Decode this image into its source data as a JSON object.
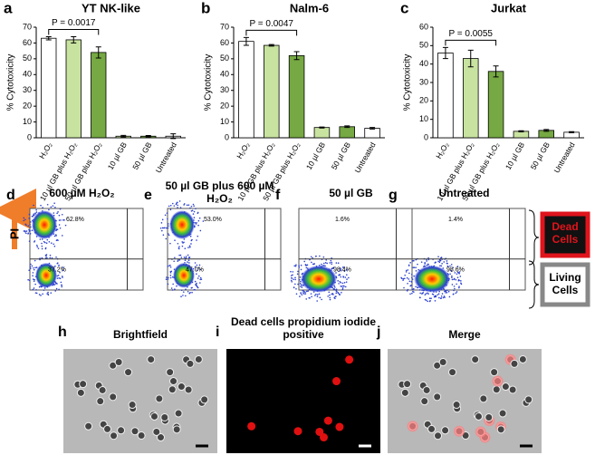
{
  "chart_data": [
    {
      "type": "bar",
      "panel_label": "a",
      "title": "YT NK-like",
      "y_label": "% Cytotoxicity",
      "annotation": "P = 0.0017",
      "categories": [
        "H₂O₂",
        "10 µl GB plus H₂O₂",
        "50 µl GB plus H₂O₂",
        "10 µl GB",
        "50 µl GB",
        "Untreated"
      ],
      "values": [
        63,
        62,
        54,
        1,
        1,
        1
      ],
      "errors": [
        1,
        2,
        3.5,
        0.5,
        0.4,
        1.5
      ],
      "colors": [
        "#ffffff",
        "#c8e3a0",
        "#76a843",
        "#c8e3a0",
        "#76a843",
        "#ffffff"
      ],
      "ylim": [
        0,
        70
      ],
      "yticks": [
        0,
        10,
        20,
        30,
        40,
        50,
        60,
        70
      ]
    },
    {
      "type": "bar",
      "panel_label": "b",
      "title": "Nalm-6",
      "y_label": "% Cytotoxicity",
      "annotation": "P = 0.0047",
      "categories": [
        "H₂O₂",
        "10 µl GB plus H₂O₂",
        "50 µl GB plus H₂O₂",
        "10 µl GB",
        "50 µl GB",
        "Untreated"
      ],
      "values": [
        61,
        58.5,
        52,
        6.5,
        7,
        6
      ],
      "errors": [
        2.5,
        0.5,
        2.5,
        0.3,
        0.5,
        0.5
      ],
      "colors": [
        "#ffffff",
        "#c8e3a0",
        "#76a843",
        "#c8e3a0",
        "#76a843",
        "#ffffff"
      ],
      "ylim": [
        0,
        70
      ],
      "yticks": [
        0,
        10,
        20,
        30,
        40,
        50,
        60,
        70
      ]
    },
    {
      "type": "bar",
      "panel_label": "c",
      "title": "Jurkat",
      "y_label": "% Cytotoxicity",
      "annotation": "P = 0.0055",
      "categories": [
        "H₂O₂",
        "10 µl GB plus H₂O₂",
        "50 µl GB plus H₂O₂",
        "10 µl GB",
        "50 µl GB",
        "Untreated"
      ],
      "values": [
        46,
        43,
        36,
        3.5,
        4,
        3
      ],
      "errors": [
        3,
        4.5,
        3,
        0.3,
        0.5,
        0.3
      ],
      "colors": [
        "#ffffff",
        "#c8e3a0",
        "#76a843",
        "#c8e3a0",
        "#76a843",
        "#ffffff"
      ],
      "ylim": [
        0,
        60
      ],
      "yticks": [
        0,
        10,
        20,
        30,
        40,
        50,
        60
      ]
    }
  ],
  "flow_y_label": "PI",
  "flow_panels": [
    {
      "label": "d",
      "title": "600 µM H₂O₂",
      "upper": "62.8%",
      "lower": "37.2%"
    },
    {
      "label": "e",
      "title": "50 µl GB plus 600 µM H₂O₂",
      "upper": "53.0%",
      "lower": "47.0%"
    },
    {
      "label": "f",
      "title": "50 µl GB",
      "upper": "1.6%",
      "lower": "98.4%"
    },
    {
      "label": "g",
      "title": "Untreated",
      "upper": "1.4%",
      "lower": "98.6%"
    }
  ],
  "gates": [
    "Dead Cells",
    "Living Cells"
  ],
  "images": [
    {
      "label": "h",
      "title": "Brightfield"
    },
    {
      "label": "i",
      "title": "Dead cells propidium iodide positive"
    },
    {
      "label": "j",
      "title": "Merge"
    }
  ]
}
